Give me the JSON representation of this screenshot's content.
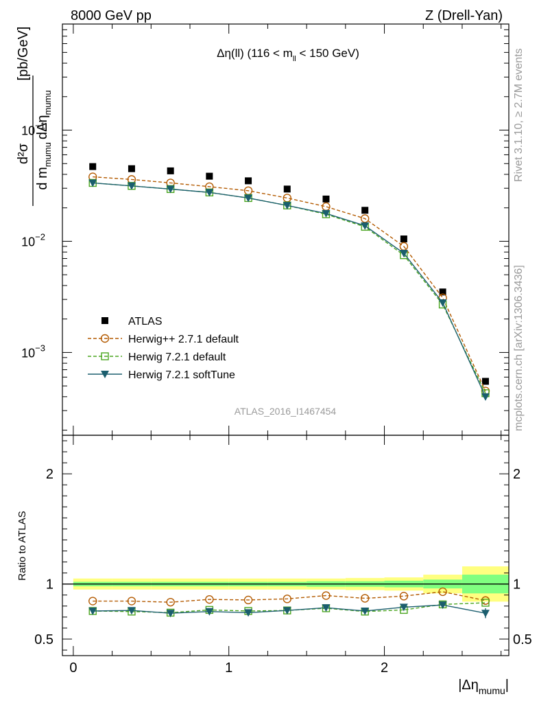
{
  "header": {
    "left": "8000 GeV pp",
    "right": "Z (Drell-Yan)"
  },
  "side_text": {
    "rivet": "Rivet 3.1.10, ≥ 2.7M events",
    "mcplots": "mcplots.cern.ch [arXiv:1306.3436]"
  },
  "chart_data": {
    "type": "line",
    "title": "Δη(ll) (116 < m_ll < 150 GeV)",
    "title_parts": {
      "main": "Δη(ll) (116 < m",
      "sub": "ll",
      "tail": " < 150 GeV)"
    },
    "analysis_label": "ATLAS_2016_I1467454",
    "xlabel": "|Δη_mumu|",
    "xlabel_parts": {
      "main": "|Δη",
      "sub": "mumu",
      "tail": "|"
    },
    "ylabel": "d²σ / d m_mumu dΔη_mumu [pb/GeV]",
    "ylabel_parts": {
      "num": "d²σ",
      "den1": "d m",
      "den_sub1": "mumu",
      "den2": "dΔη",
      "den_sub2": "mumu",
      "unit": "[pb/GeV]"
    },
    "ratio_ylabel": "Ratio to ATLAS",
    "xlim": [
      -0.07,
      2.8
    ],
    "ylim": [
      0.00018,
      0.9
    ],
    "yscale": "log",
    "ratio_ylim": [
      0.35,
      2.35
    ],
    "x_ticks": [
      0,
      1,
      2
    ],
    "x_tick_labels": [
      "0",
      "1",
      "2"
    ],
    "y_ticks": [
      0.1,
      0.01,
      0.001
    ],
    "y_tick_labels": [
      {
        "base": "10",
        "exp": "−1"
      },
      {
        "base": "10",
        "exp": "−2"
      },
      {
        "base": "10",
        "exp": "−3"
      }
    ],
    "ratio_ticks": [
      0.5,
      1,
      2
    ],
    "ratio_tick_labels": [
      "0.5",
      "1",
      "2"
    ],
    "x": [
      0.125,
      0.375,
      0.625,
      0.875,
      1.125,
      1.375,
      1.625,
      1.875,
      2.125,
      2.375,
      2.65
    ],
    "bin_edges": [
      0,
      0.25,
      0.5,
      0.75,
      1.0,
      1.25,
      1.5,
      1.75,
      2.0,
      2.25,
      2.5,
      2.8
    ],
    "data_band_inner": [
      0.02,
      0.02,
      0.02,
      0.02,
      0.02,
      0.02,
      0.025,
      0.025,
      0.03,
      0.04,
      0.085
    ],
    "data_band_outer": [
      0.05,
      0.05,
      0.05,
      0.05,
      0.05,
      0.05,
      0.05,
      0.055,
      0.06,
      0.085,
      0.16
    ],
    "series": [
      {
        "name": "ATLAS",
        "marker": "square-filled",
        "color": "#000000",
        "line": "none",
        "values": [
          0.047,
          0.045,
          0.043,
          0.0385,
          0.035,
          0.0295,
          0.024,
          0.019,
          0.0105,
          0.0035,
          0.00055
        ],
        "ratio": [
          1,
          1,
          1,
          1,
          1,
          1,
          1,
          1,
          1,
          1,
          1
        ]
      },
      {
        "name": "Herwig++ 2.7.1 default",
        "marker": "circle-open",
        "color": "#b35a00",
        "line": "dashed",
        "values": [
          0.038,
          0.036,
          0.0335,
          0.031,
          0.0285,
          0.0245,
          0.0205,
          0.016,
          0.009,
          0.0031,
          0.00045
        ],
        "ratio": [
          0.845,
          0.845,
          0.835,
          0.86,
          0.855,
          0.865,
          0.895,
          0.87,
          0.89,
          0.93,
          0.85
        ]
      },
      {
        "name": "Herwig 7.2.1 default",
        "marker": "square-open",
        "color": "#4aa51f",
        "line": "dashed",
        "values": [
          0.0335,
          0.0315,
          0.0295,
          0.0275,
          0.0245,
          0.021,
          0.0175,
          0.0135,
          0.0075,
          0.0027,
          0.00043
        ],
        "ratio": [
          0.755,
          0.75,
          0.74,
          0.765,
          0.755,
          0.76,
          0.78,
          0.75,
          0.765,
          0.815,
          0.83
        ]
      },
      {
        "name": "Herwig 7.2.1 softTune",
        "marker": "triangle-down-filled",
        "color": "#1b5e6e",
        "line": "solid",
        "values": [
          0.0335,
          0.0315,
          0.0295,
          0.0275,
          0.0245,
          0.021,
          0.0178,
          0.0138,
          0.0078,
          0.0028,
          0.0004
        ],
        "ratio": [
          0.755,
          0.76,
          0.735,
          0.75,
          0.74,
          0.76,
          0.785,
          0.755,
          0.79,
          0.81,
          0.735
        ],
        "ratio_err": [
          0,
          0,
          0,
          0,
          0,
          0,
          0,
          0,
          0,
          0,
          0.045
        ]
      }
    ],
    "band_colors": {
      "outer": "#ffff80",
      "inner": "#80ff80"
    }
  }
}
